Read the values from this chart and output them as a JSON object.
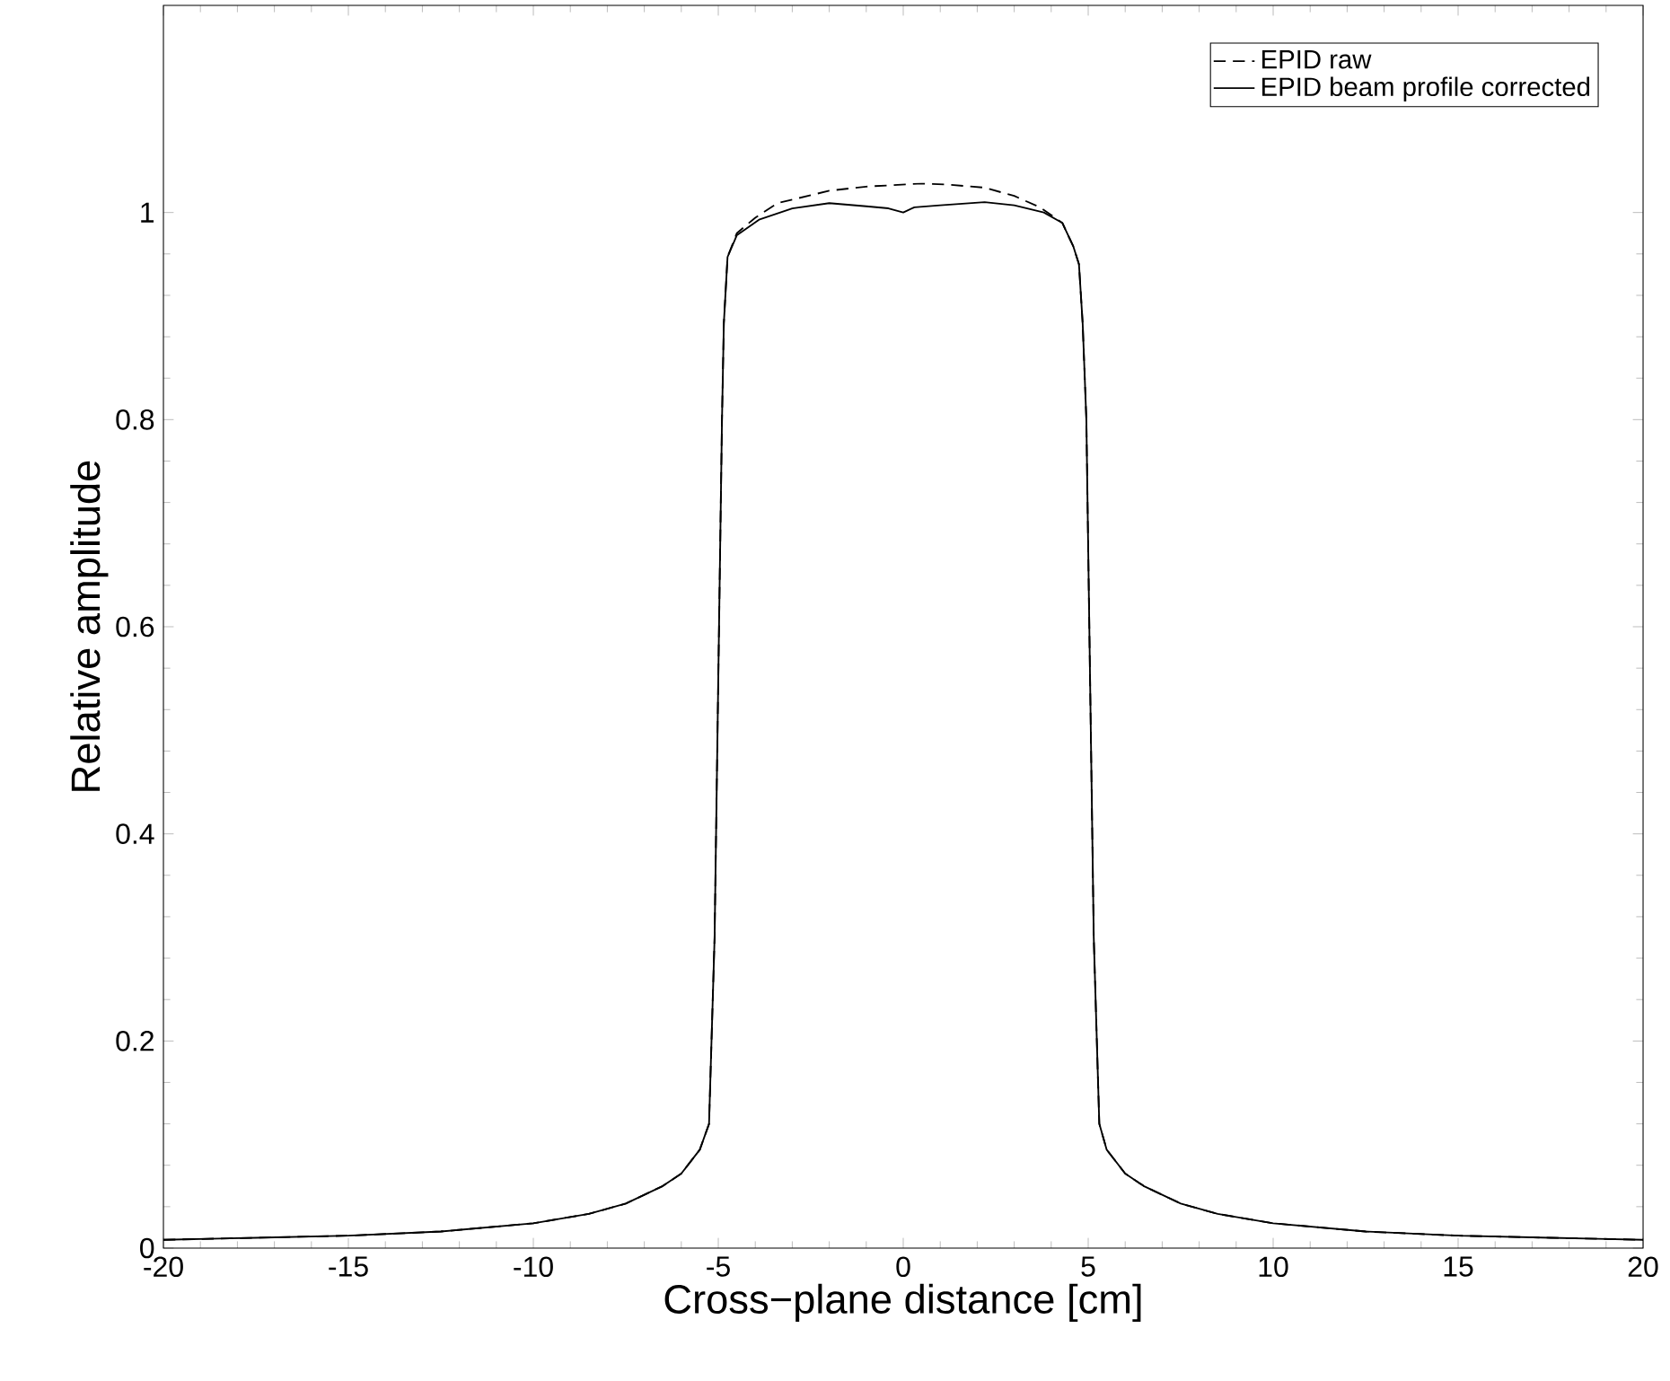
{
  "chart_data": {
    "type": "line",
    "xlabel": "Cross−plane distance [cm]",
    "ylabel": "Relative amplitude",
    "xlim": [
      -20,
      20
    ],
    "ylim": [
      0,
      1.2
    ],
    "xticks": [
      -20,
      -15,
      -10,
      -5,
      0,
      5,
      10,
      15,
      20
    ],
    "yticks": [
      0,
      0.2,
      0.4,
      0.6,
      0.8,
      1
    ],
    "legend": "top right",
    "series": [
      {
        "name": "EPID raw",
        "color": "#000000",
        "line_style": "dashed",
        "x": [
          -20,
          -17.5,
          -15,
          -12.5,
          -10,
          -8.5,
          -7.5,
          -6.5,
          -6,
          -5.5,
          -5.25,
          -5.1,
          -5,
          -4.9,
          -4.85,
          -4.75,
          -4.5,
          -4,
          -3.4,
          -2,
          -1,
          0.5,
          1.2,
          2.2,
          3,
          3.7,
          4.3,
          4.6,
          4.75,
          4.85,
          4.95,
          5.05,
          5.15,
          5.3,
          5.5,
          6,
          6.5,
          7.5,
          8.5,
          10,
          12.5,
          15,
          17.5,
          20
        ],
        "values": [
          0.008,
          0.01,
          0.012,
          0.016,
          0.024,
          0.033,
          0.043,
          0.06,
          0.072,
          0.095,
          0.12,
          0.3,
          0.55,
          0.8,
          0.893,
          0.957,
          0.98,
          0.995,
          1.009,
          1.021,
          1.025,
          1.028,
          1.027,
          1.024,
          1.016,
          1.005,
          0.99,
          0.967,
          0.95,
          0.893,
          0.8,
          0.55,
          0.3,
          0.12,
          0.095,
          0.072,
          0.06,
          0.043,
          0.033,
          0.024,
          0.016,
          0.012,
          0.01,
          0.008
        ]
      },
      {
        "name": "EPID beam profile corrected",
        "color": "#000000",
        "line_style": "solid",
        "x": [
          -20,
          -17.5,
          -15,
          -12.5,
          -10,
          -8.5,
          -7.5,
          -6.5,
          -6,
          -5.5,
          -5.25,
          -5.1,
          -5,
          -4.9,
          -4.85,
          -4.75,
          -4.5,
          -3.9,
          -3,
          -2,
          -1,
          -0.4,
          0,
          0.3,
          1,
          2.2,
          3,
          3.8,
          4.3,
          4.6,
          4.75,
          4.85,
          4.95,
          5.05,
          5.15,
          5.3,
          5.5,
          6,
          6.5,
          7.5,
          8.5,
          10,
          12.5,
          15,
          17.5,
          20
        ],
        "values": [
          0.008,
          0.01,
          0.012,
          0.016,
          0.024,
          0.033,
          0.043,
          0.06,
          0.072,
          0.095,
          0.12,
          0.3,
          0.55,
          0.8,
          0.893,
          0.957,
          0.978,
          0.993,
          1.004,
          1.009,
          1.006,
          1.004,
          1.0,
          1.005,
          1.007,
          1.01,
          1.007,
          1.0,
          0.99,
          0.967,
          0.95,
          0.893,
          0.8,
          0.55,
          0.3,
          0.12,
          0.095,
          0.072,
          0.06,
          0.043,
          0.033,
          0.024,
          0.016,
          0.012,
          0.01,
          0.008
        ]
      }
    ]
  }
}
